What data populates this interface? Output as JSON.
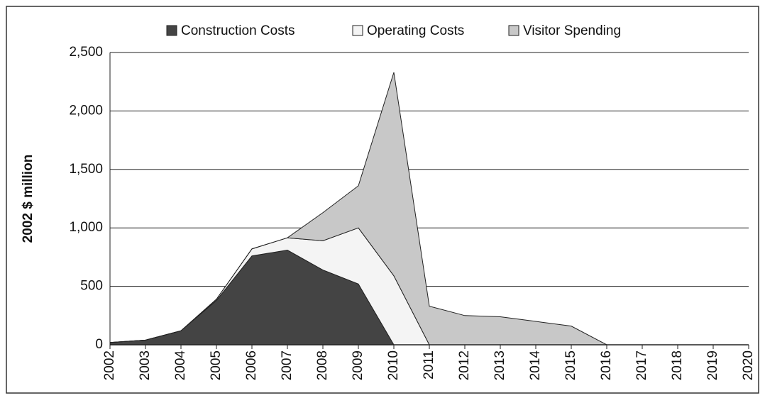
{
  "chart_data": {
    "type": "stacked_area",
    "ylabel": "2002 $ million",
    "categories": [
      "2002",
      "2003",
      "2004",
      "2005",
      "2006",
      "2007",
      "2008",
      "2009",
      "2010",
      "2011",
      "2012",
      "2013",
      "2014",
      "2015",
      "2016",
      "2017",
      "2018",
      "2019",
      "2020"
    ],
    "series": [
      {
        "name": "Construction Costs",
        "color": "#444444",
        "values": [
          20,
          40,
          120,
          380,
          760,
          810,
          640,
          520,
          0,
          0,
          0,
          0,
          0,
          0,
          0,
          0,
          0,
          0,
          0
        ]
      },
      {
        "name": "Operating Costs",
        "color": "#f4f4f4",
        "values": [
          0,
          0,
          0,
          10,
          60,
          105,
          250,
          480,
          590,
          0,
          0,
          0,
          0,
          0,
          0,
          0,
          0,
          0,
          0
        ]
      },
      {
        "name": "Visitor Spending",
        "color": "#c8c8c8",
        "values": [
          0,
          0,
          0,
          0,
          0,
          0,
          240,
          360,
          1740,
          330,
          250,
          240,
          200,
          160,
          0,
          0,
          0,
          0,
          0
        ]
      }
    ],
    "ylim": [
      0,
      2500
    ],
    "yticks": [
      0,
      500,
      {
        "value": 1000,
        "label": "1,000"
      },
      {
        "value": 1500,
        "label": "1,500"
      },
      {
        "value": 2000,
        "label": "2,000"
      },
      {
        "value": 2500,
        "label": "2,500"
      }
    ],
    "grid": true,
    "legend": "top"
  }
}
